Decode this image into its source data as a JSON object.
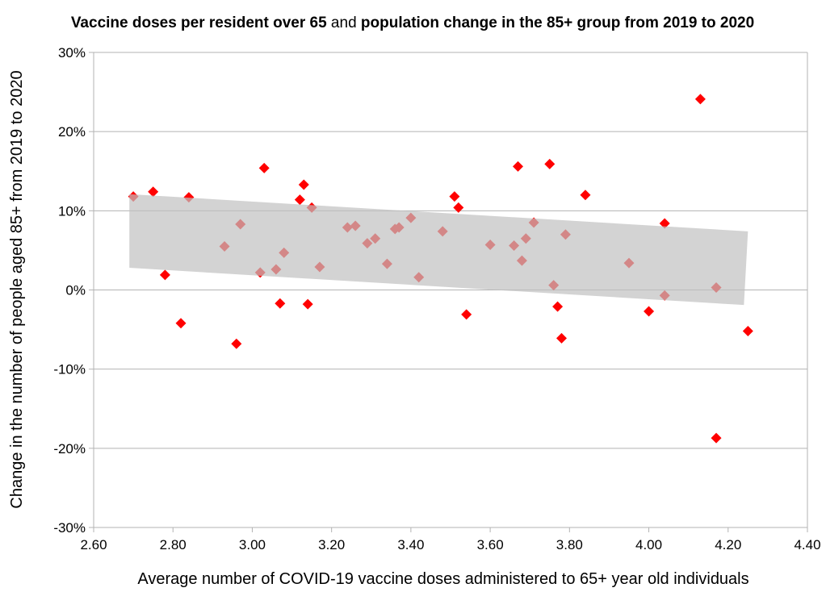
{
  "chart_data": {
    "type": "scatter",
    "title_parts": [
      {
        "text": "Vaccine doses per resident over 65",
        "bold": true
      },
      {
        "text": " and ",
        "bold": false
      },
      {
        "text": "population change in the 85+ group from 2019 to 2020",
        "bold": true
      }
    ],
    "xlabel": "Average number of COVID-19 vaccine doses administered to 65+ year old individuals",
    "ylabel": "Change in the number of people aged 85+ from 2019 to 2020",
    "xlim": [
      2.6,
      4.4
    ],
    "ylim": [
      -30,
      30
    ],
    "x_ticks": [
      2.6,
      2.8,
      3.0,
      3.2,
      3.4,
      3.6,
      3.8,
      4.0,
      4.2,
      4.4
    ],
    "x_tick_labels": [
      "2.60",
      "2.80",
      "3.00",
      "3.20",
      "3.40",
      "3.60",
      "3.80",
      "4.00",
      "4.20",
      "4.40"
    ],
    "y_ticks": [
      30,
      20,
      10,
      0,
      -10,
      -20,
      -30
    ],
    "y_tick_labels": [
      "30%",
      "20%",
      "10%",
      "0%",
      "-10%",
      "-20%",
      "-30%"
    ],
    "grid": "horizontal",
    "legend": "none",
    "marker": "diamond",
    "marker_color": "#ff0000",
    "band_color": "#c0c0c0",
    "trend_band": {
      "x": [
        2.69,
        4.25
      ],
      "upper": [
        12.1,
        7.4
      ],
      "lower": [
        2.8,
        -1.9
      ]
    },
    "points": [
      {
        "x": 2.7,
        "y": 11.8
      },
      {
        "x": 2.75,
        "y": 12.4
      },
      {
        "x": 2.78,
        "y": 1.9
      },
      {
        "x": 2.82,
        "y": -4.2
      },
      {
        "x": 2.84,
        "y": 11.7
      },
      {
        "x": 2.93,
        "y": 5.5
      },
      {
        "x": 2.96,
        "y": -6.8
      },
      {
        "x": 2.97,
        "y": 8.3
      },
      {
        "x": 3.02,
        "y": 2.2
      },
      {
        "x": 3.03,
        "y": 15.4
      },
      {
        "x": 3.06,
        "y": 2.6
      },
      {
        "x": 3.07,
        "y": -1.7
      },
      {
        "x": 3.08,
        "y": 4.7
      },
      {
        "x": 3.12,
        "y": 11.4
      },
      {
        "x": 3.13,
        "y": 13.3
      },
      {
        "x": 3.14,
        "y": -1.8
      },
      {
        "x": 3.15,
        "y": 10.4
      },
      {
        "x": 3.17,
        "y": 2.9
      },
      {
        "x": 3.24,
        "y": 7.9
      },
      {
        "x": 3.26,
        "y": 8.1
      },
      {
        "x": 3.29,
        "y": 5.9
      },
      {
        "x": 3.31,
        "y": 6.5
      },
      {
        "x": 3.34,
        "y": 3.3
      },
      {
        "x": 3.36,
        "y": 7.7
      },
      {
        "x": 3.37,
        "y": 7.9
      },
      {
        "x": 3.4,
        "y": 9.1
      },
      {
        "x": 3.42,
        "y": 1.6
      },
      {
        "x": 3.48,
        "y": 7.4
      },
      {
        "x": 3.51,
        "y": 11.8
      },
      {
        "x": 3.52,
        "y": 10.4
      },
      {
        "x": 3.54,
        "y": -3.1
      },
      {
        "x": 3.6,
        "y": 5.7
      },
      {
        "x": 3.66,
        "y": 5.6
      },
      {
        "x": 3.67,
        "y": 15.6
      },
      {
        "x": 3.68,
        "y": 3.7
      },
      {
        "x": 3.69,
        "y": 6.5
      },
      {
        "x": 3.71,
        "y": 8.5
      },
      {
        "x": 3.75,
        "y": 15.9
      },
      {
        "x": 3.76,
        "y": 0.6
      },
      {
        "x": 3.77,
        "y": -2.1
      },
      {
        "x": 3.78,
        "y": -6.1
      },
      {
        "x": 3.79,
        "y": 7.0
      },
      {
        "x": 3.84,
        "y": 12.0
      },
      {
        "x": 3.95,
        "y": 3.4
      },
      {
        "x": 4.0,
        "y": -2.7
      },
      {
        "x": 4.04,
        "y": 8.4
      },
      {
        "x": 4.04,
        "y": -0.7
      },
      {
        "x": 4.13,
        "y": 24.1
      },
      {
        "x": 4.17,
        "y": 0.3
      },
      {
        "x": 4.17,
        "y": -18.7
      },
      {
        "x": 4.25,
        "y": -5.2
      }
    ]
  }
}
